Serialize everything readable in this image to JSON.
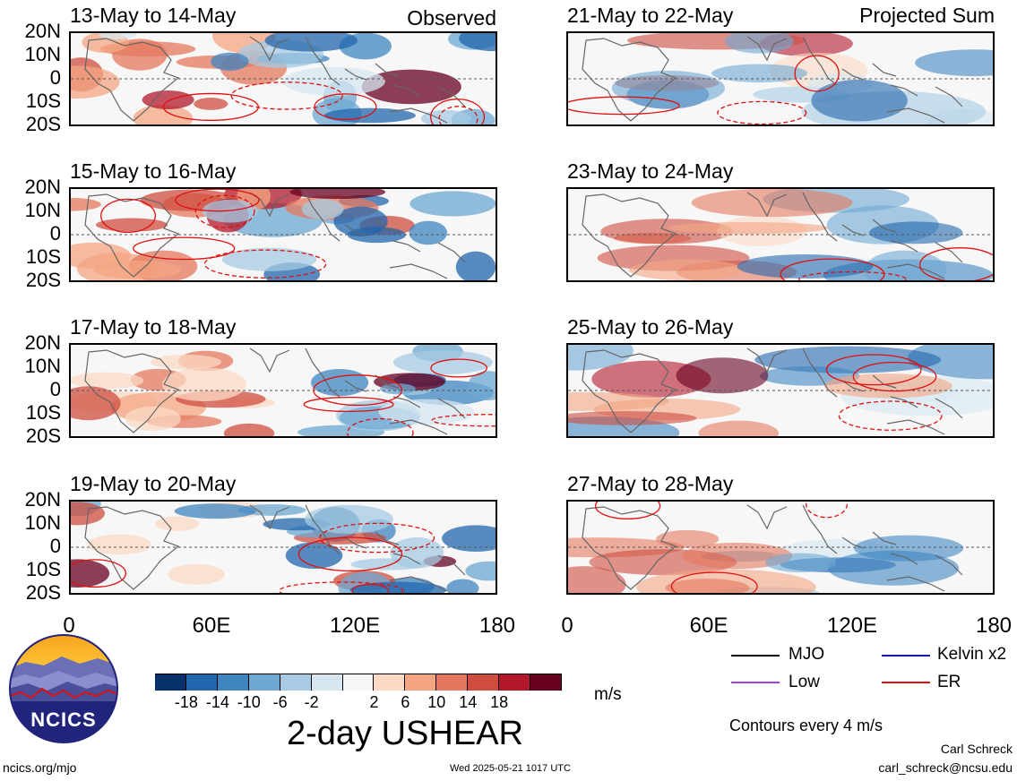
{
  "panels": [
    {
      "id": "p1",
      "title": "13-May to 14-May",
      "corner": "Observed",
      "variant": 0
    },
    {
      "id": "p2",
      "title": "15-May to 16-May",
      "corner": "",
      "variant": 1
    },
    {
      "id": "p3",
      "title": "17-May to 18-May",
      "corner": "",
      "variant": 2
    },
    {
      "id": "p4",
      "title": "19-May to 20-May",
      "corner": "",
      "variant": 3
    },
    {
      "id": "p5",
      "title": "21-May to 22-May",
      "corner": "Projected Sum",
      "variant": 4
    },
    {
      "id": "p6",
      "title": "23-May to 24-May",
      "corner": "",
      "variant": 5
    },
    {
      "id": "p7",
      "title": "25-May to 26-May",
      "corner": "",
      "variant": 6
    },
    {
      "id": "p8",
      "title": "27-May to 28-May",
      "corner": "",
      "variant": 7
    }
  ],
  "lat_labels": [
    "20N",
    "10N",
    "0",
    "10S",
    "20S"
  ],
  "lon_labels": [
    "0",
    "60E",
    "120E",
    "180"
  ],
  "colorbar": {
    "colors": [
      "#08306b",
      "#2166ac",
      "#3f86c1",
      "#6ea8d3",
      "#a6cbe3",
      "#d6e7f2",
      "#f7f7f7",
      "#fbd9c4",
      "#f4a582",
      "#e4785e",
      "#cf4d3f",
      "#b2182b",
      "#67001f"
    ],
    "tick_labels": [
      "-18",
      "-14",
      "-10",
      "-6",
      "-2",
      "2",
      "6",
      "10",
      "14",
      "18"
    ],
    "units": "m/s"
  },
  "main_title": "2-day USHEAR",
  "legend": {
    "items": [
      {
        "label": "MJO",
        "color": "#000000"
      },
      {
        "label": "Kelvin x2",
        "color": "#1010e0"
      },
      {
        "label": "Low",
        "color": "#a040e0"
      },
      {
        "label": "ER",
        "color": "#e01010"
      }
    ],
    "contour_note": "Contours every 4 m/s"
  },
  "logo": {
    "text": "NCICS"
  },
  "footer": {
    "url": "ncics.org/mjo",
    "timestamp": "Wed 2025-05-21 1017 UTC",
    "author": "Carl Schreck",
    "email": "carl_schreck@ncsu.edu"
  }
}
